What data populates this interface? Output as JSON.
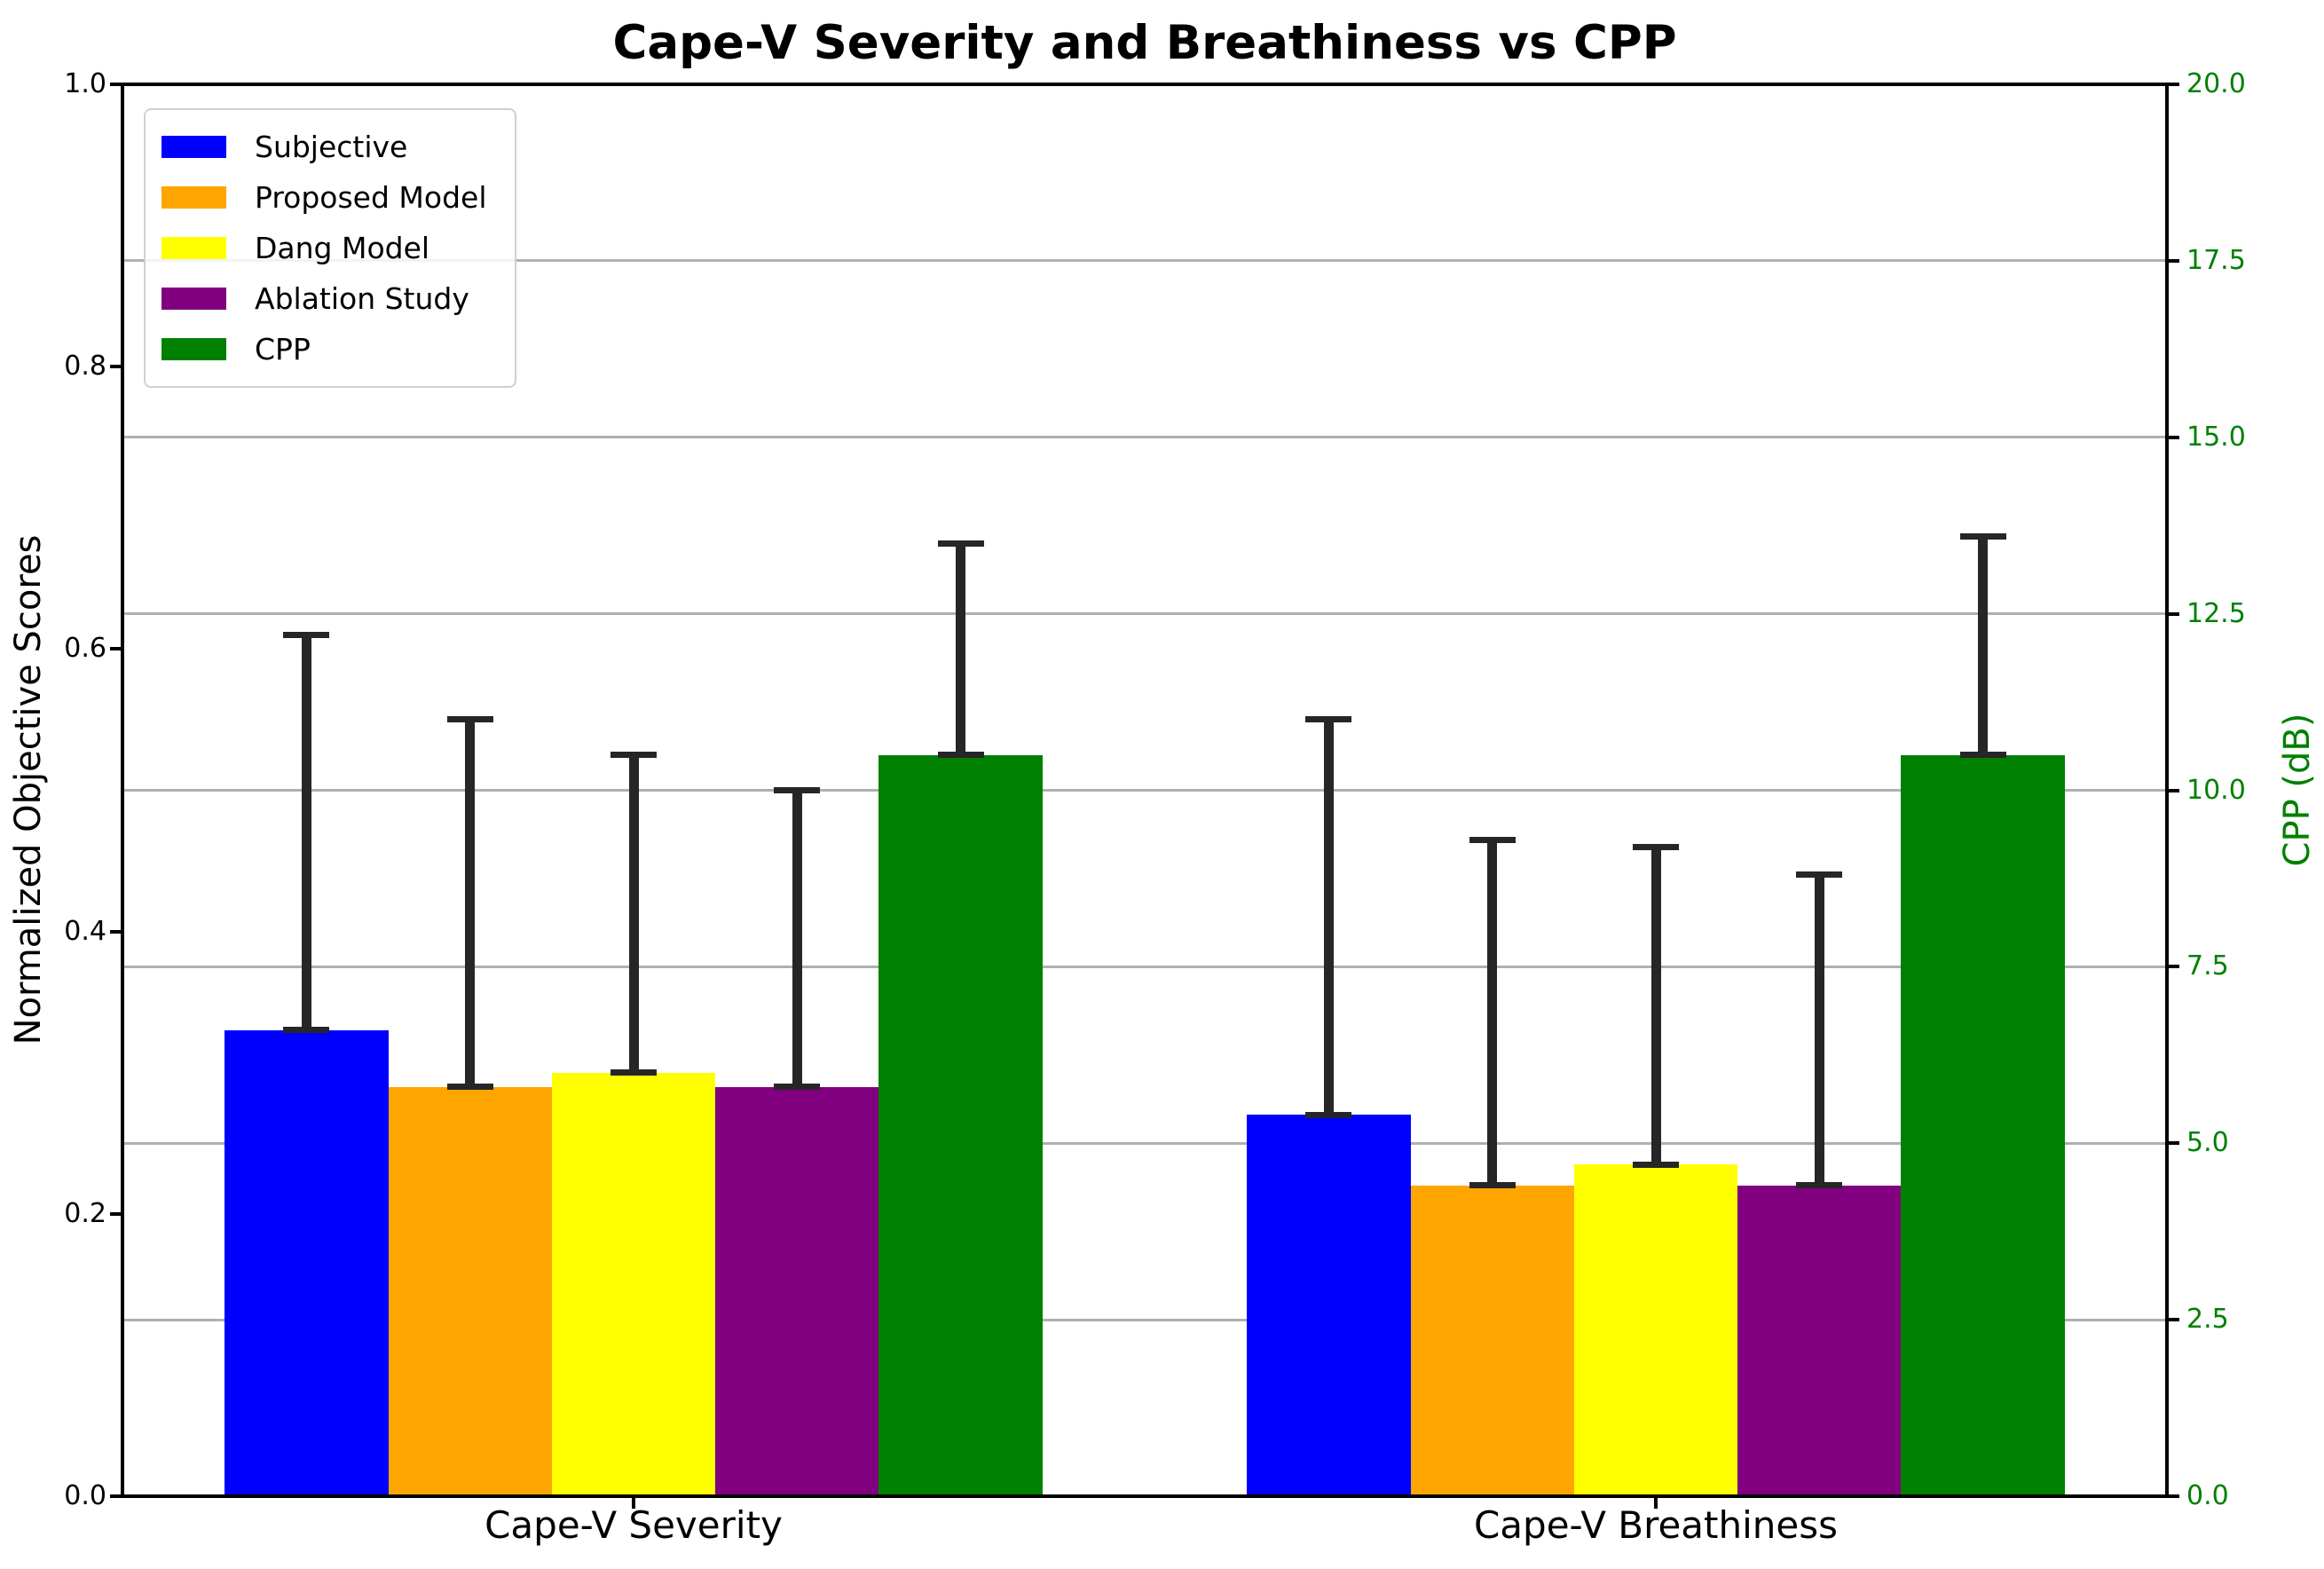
{
  "title": "Cape-V Severity and Breathiness vs CPP",
  "axes": {
    "left": {
      "label": "Normalized Objective Scores",
      "ticks": [
        "1.0",
        "0.8",
        "0.6",
        "0.4",
        "0.2",
        "0.0"
      ],
      "tick_values": [
        1.0,
        0.8,
        0.6,
        0.4,
        0.2,
        0.0
      ],
      "range": [
        0,
        1
      ],
      "color": "#000000"
    },
    "right": {
      "label": "CPP (dB)",
      "ticks": [
        "20.0",
        "17.5",
        "15.0",
        "12.5",
        "10.0",
        "7.5",
        "5.0",
        "2.5",
        "0.0"
      ],
      "tick_values": [
        20,
        17.5,
        15,
        12.5,
        10,
        7.5,
        5,
        2.5,
        0
      ],
      "range": [
        0,
        20
      ],
      "color": "#008000"
    }
  },
  "chart_data": {
    "type": "bar",
    "title": "Cape-V Severity and Breathiness vs CPP",
    "categories": [
      "Cape-V Severity",
      "Cape-V Breathiness"
    ],
    "series": [
      {
        "name": "Subjective",
        "color": "#0000ff",
        "axis": "left",
        "values": [
          0.33,
          0.27
        ],
        "errors_plus": [
          0.28,
          0.28
        ]
      },
      {
        "name": "Proposed Model",
        "color": "#ffa500",
        "axis": "left",
        "values": [
          0.29,
          0.22
        ],
        "errors_plus": [
          0.26,
          0.245
        ]
      },
      {
        "name": "Dang Model",
        "color": "#ffff00",
        "axis": "left",
        "values": [
          0.3,
          0.235
        ],
        "errors_plus": [
          0.225,
          0.225
        ]
      },
      {
        "name": "Ablation Study",
        "color": "#800080",
        "axis": "left",
        "values": [
          0.29,
          0.22
        ],
        "errors_plus": [
          0.21,
          0.22
        ]
      },
      {
        "name": "CPP",
        "color": "#008000",
        "axis": "right",
        "values": [
          10.5,
          10.5
        ],
        "errors_plus": [
          3.0,
          3.1
        ]
      }
    ],
    "ylabel_left": "Normalized Objective Scores",
    "ylabel_right": "CPP (dB)",
    "ylim_left": [
      0,
      1
    ],
    "ylim_right": [
      0,
      20
    ],
    "grid": "horizontal gridlines at right-axis ticks (every 2.5 dB)",
    "legend_position": "upper left",
    "error_bars": "upper only, cap at bar top and at top of error"
  },
  "styles": {
    "error_bar_color": "#262626",
    "grid_color": "#b0b0b0",
    "spine_color": "#000000",
    "legend_border_color": "#d0d0d0"
  }
}
